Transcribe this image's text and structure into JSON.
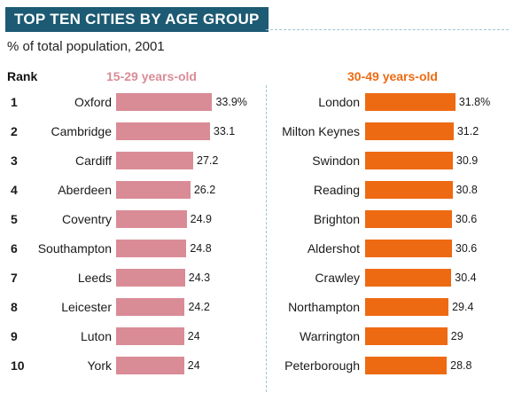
{
  "title": "TOP TEN CITIES BY AGE GROUP",
  "subtitle": "% of total population, 2001",
  "rank_header": "Rank",
  "colors": {
    "title_bg": "#1d5a73",
    "rule": "#9cc4d3"
  },
  "chart_data": [
    {
      "type": "bar",
      "title": "15-29 years-old",
      "color": "#d98c96",
      "ranks": [
        1,
        2,
        3,
        4,
        5,
        6,
        7,
        8,
        9,
        10
      ],
      "categories": [
        "Oxford",
        "Cambridge",
        "Cardiff",
        "Aberdeen",
        "Coventry",
        "Southampton",
        "Leeds",
        "Leicester",
        "Luton",
        "York"
      ],
      "values": [
        33.9,
        33.1,
        27.2,
        26.2,
        24.9,
        24.8,
        24.3,
        24.2,
        24,
        24
      ],
      "value_labels": [
        "33.9%",
        "33.1",
        "27.2",
        "26.2",
        "24.9",
        "24.8",
        "24.3",
        "24.2",
        "24",
        "24"
      ]
    },
    {
      "type": "bar",
      "title": "30-49 years-old",
      "color": "#ee6a12",
      "ranks": [
        1,
        2,
        3,
        4,
        5,
        6,
        7,
        8,
        9,
        10
      ],
      "categories": [
        "London",
        "Milton Keynes",
        "Swindon",
        "Reading",
        "Brighton",
        "Aldershot",
        "Crawley",
        "Northampton",
        "Warrington",
        "Peterborough"
      ],
      "values": [
        31.8,
        31.2,
        30.9,
        30.8,
        30.6,
        30.6,
        30.4,
        29.4,
        29,
        28.8
      ],
      "value_labels": [
        "31.8%",
        "31.2",
        "30.9",
        "30.8",
        "30.6",
        "30.6",
        "30.4",
        "29.4",
        "29",
        "28.8"
      ]
    }
  ]
}
